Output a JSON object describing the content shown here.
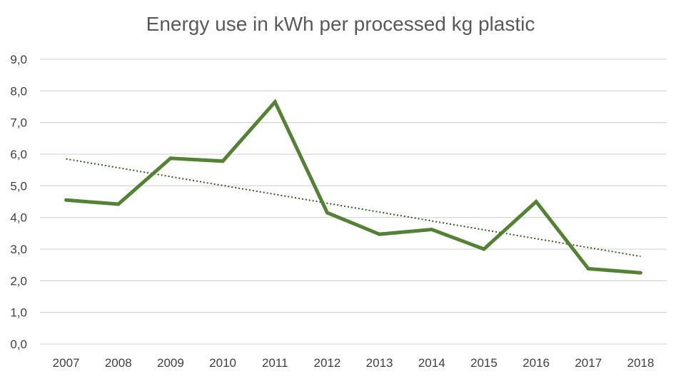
{
  "chart_data": {
    "type": "line",
    "title": "Energy use in kWh per processed kg plastic",
    "x": [
      "2007",
      "2008",
      "2009",
      "2010",
      "2011",
      "2012",
      "2013",
      "2014",
      "2015",
      "2016",
      "2017",
      "2018"
    ],
    "series": [
      {
        "values": [
          4.55,
          4.42,
          5.87,
          5.78,
          7.65,
          4.15,
          3.47,
          3.62,
          3.0,
          4.5,
          2.38,
          2.25
        ],
        "color": "#548235",
        "style": "solid"
      }
    ],
    "trendline": {
      "type": "linear",
      "start": 5.85,
      "end": 2.77,
      "color": "#375623",
      "style": "dotted"
    },
    "ylim": [
      0,
      9
    ],
    "yticks": [
      "0,0",
      "1,0",
      "2,0",
      "3,0",
      "4,0",
      "5,0",
      "6,0",
      "7,0",
      "8,0",
      "9,0"
    ],
    "grid": true,
    "legend": false
  }
}
